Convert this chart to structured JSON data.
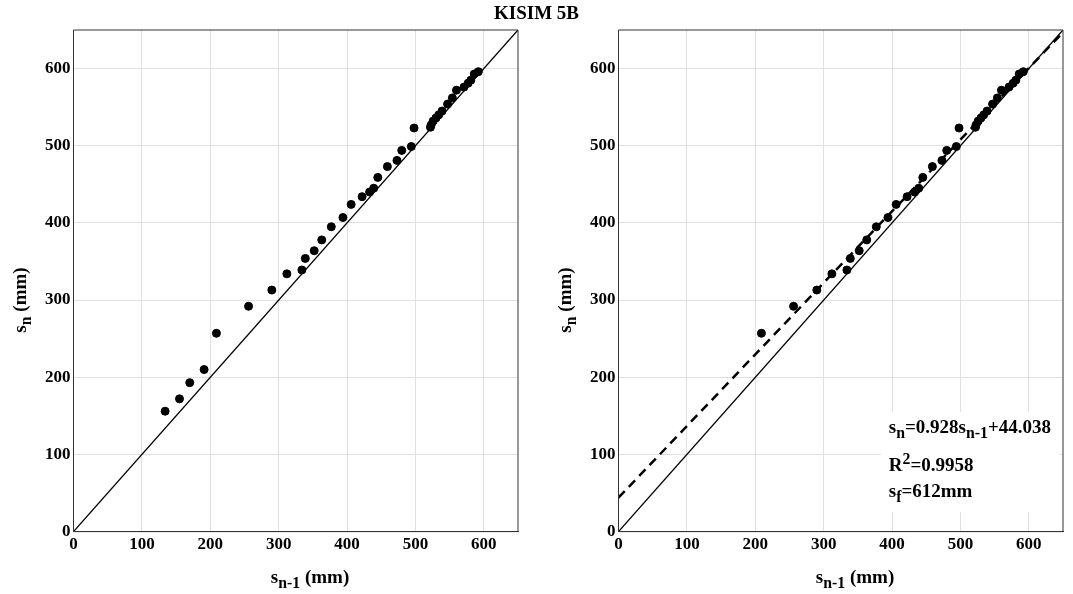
{
  "chart_data": [
    {
      "type": "scatter",
      "title": "KISIM 5B",
      "xlabel": "s$_{n-1}$ (mm)",
      "ylabel": "s$_{n}$ (mm)",
      "xlim": [
        0,
        650
      ],
      "ylim": [
        0,
        650
      ],
      "xticks": [
        0,
        100,
        200,
        300,
        400,
        500,
        600
      ],
      "yticks": [
        0,
        100,
        200,
        300,
        400,
        500,
        600
      ],
      "grid": true,
      "legend": false,
      "series": [
        {
          "type": "scatter",
          "color": "#000000",
          "marker": "circle",
          "x": [
            134,
            155,
            170,
            191,
            209,
            256,
            290,
            312,
            334,
            339,
            352,
            363,
            377,
            394,
            406,
            422,
            433,
            439,
            445,
            459,
            473,
            480,
            494,
            498,
            522,
            523,
            526,
            530,
            534,
            539,
            547,
            554,
            560,
            571,
            577,
            581,
            586,
            592
          ],
          "values": [
            156,
            172,
            193,
            210,
            257,
            292,
            313,
            334,
            339,
            354,
            364,
            378,
            395,
            407,
            424,
            434,
            440,
            445,
            459,
            473,
            481,
            494,
            499,
            523,
            524,
            527,
            532,
            536,
            540,
            545,
            554,
            562,
            572,
            576,
            581,
            585,
            593,
            596
          ]
        },
        {
          "type": "line",
          "color": "#000000",
          "line_style": "solid",
          "x": [
            0,
            650
          ],
          "values": [
            0,
            650
          ]
        }
      ]
    },
    {
      "type": "scatter",
      "xlabel": "s$_{n-1}$ (mm)",
      "ylabel": "s$_{n}$ (mm)",
      "xlim": [
        0,
        650
      ],
      "ylim": [
        0,
        650
      ],
      "xticks": [
        0,
        100,
        200,
        300,
        400,
        500,
        600
      ],
      "yticks": [
        0,
        100,
        200,
        300,
        400,
        500,
        600
      ],
      "grid": true,
      "legend": false,
      "annotations": [
        "s$_{n}$=0.928s$_{n-1}$+44.038",
        "R$^{2}$=0.9958",
        "s$_{f}$=612mm"
      ],
      "series": [
        {
          "type": "scatter",
          "color": "#000000",
          "marker": "circle",
          "x": [
            209,
            256,
            290,
            312,
            334,
            339,
            352,
            363,
            377,
            394,
            406,
            422,
            433,
            439,
            445,
            459,
            473,
            480,
            494,
            498,
            522,
            523,
            526,
            530,
            534,
            539,
            547,
            554,
            560,
            571,
            577,
            581,
            586,
            592
          ],
          "values": [
            257,
            292,
            313,
            334,
            339,
            354,
            364,
            378,
            395,
            407,
            424,
            434,
            440,
            445,
            459,
            473,
            481,
            494,
            499,
            523,
            524,
            527,
            532,
            536,
            540,
            545,
            554,
            562,
            572,
            576,
            581,
            585,
            593,
            596
          ]
        },
        {
          "type": "line",
          "color": "#000000",
          "line_style": "solid",
          "x": [
            0,
            650
          ],
          "values": [
            0,
            650
          ]
        },
        {
          "type": "line",
          "color": "#000000",
          "line_style": "dashed",
          "x": [
            0,
            650
          ],
          "values": [
            44,
            647
          ]
        }
      ]
    }
  ]
}
